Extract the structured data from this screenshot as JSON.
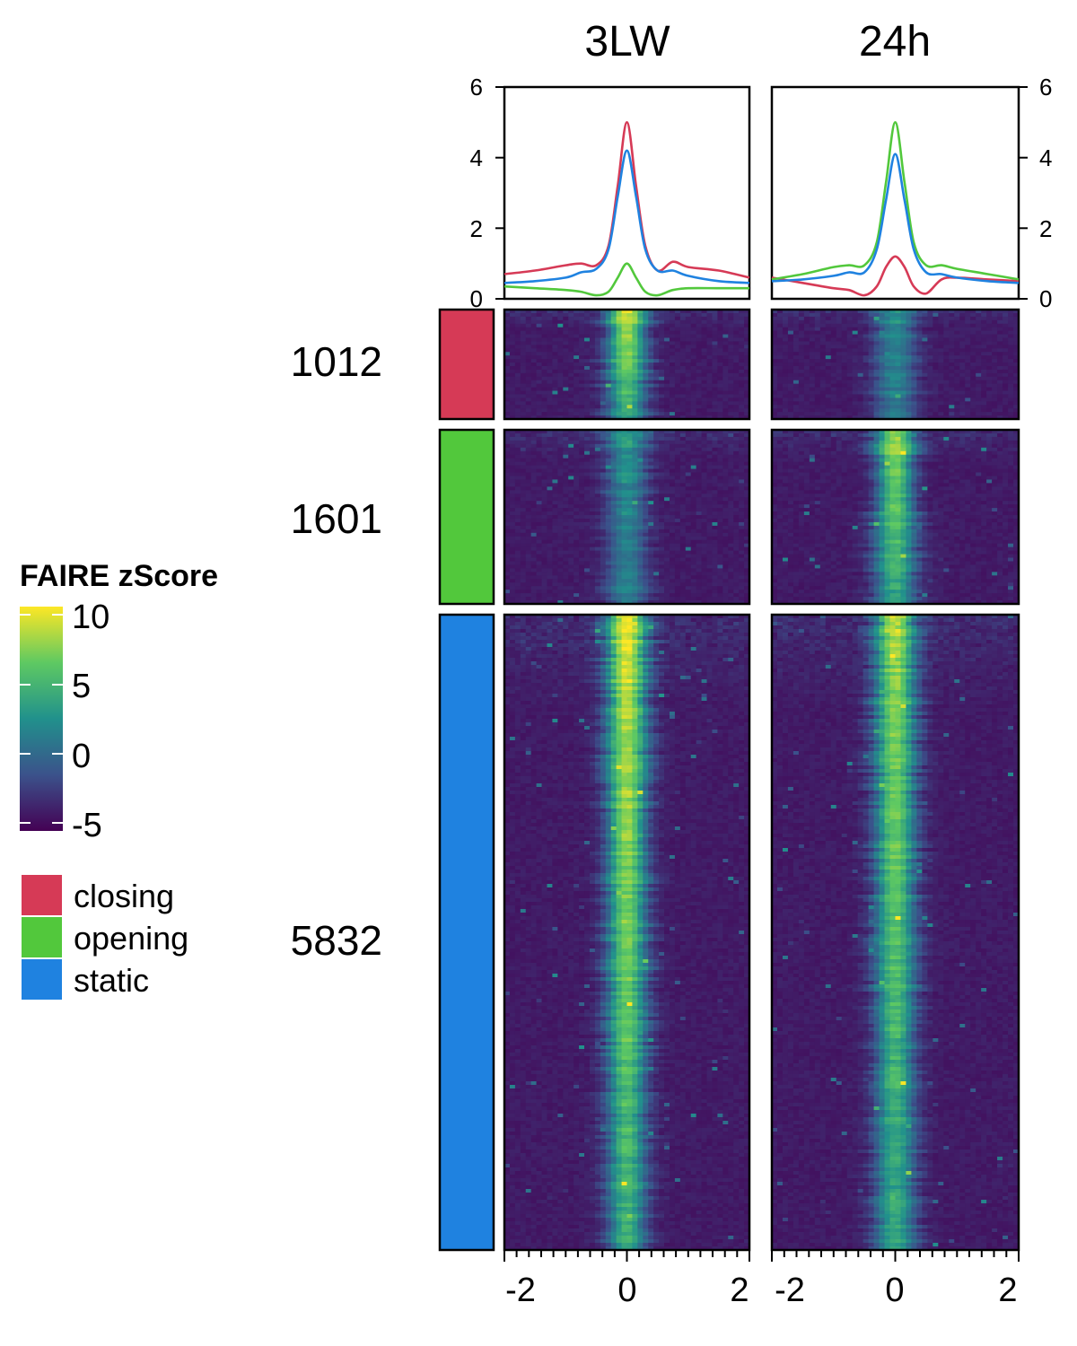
{
  "colors": {
    "closing": "#d63a56",
    "opening": "#52c83c",
    "static": "#1f82e0",
    "frame": "#000000"
  },
  "chart_data": {
    "type": "heatmap",
    "panels": [
      {
        "title": "3LW",
        "profile": {
          "series": [
            {
              "name": "closing",
              "x": [
                -2,
                -1.5,
                -1,
                -0.75,
                -0.5,
                -0.3,
                -0.15,
                0,
                0.15,
                0.3,
                0.5,
                0.75,
                1,
                1.5,
                2
              ],
              "y": [
                0.7,
                0.8,
                0.95,
                1.0,
                0.95,
                1.5,
                3.2,
                5.0,
                3.2,
                1.5,
                0.8,
                1.05,
                0.9,
                0.8,
                0.6
              ]
            },
            {
              "name": "opening",
              "x": [
                -2,
                -1.5,
                -1,
                -0.75,
                -0.5,
                -0.3,
                -0.15,
                0,
                0.15,
                0.3,
                0.5,
                0.75,
                1,
                1.5,
                2
              ],
              "y": [
                0.35,
                0.3,
                0.25,
                0.2,
                0.1,
                0.2,
                0.6,
                1.0,
                0.6,
                0.2,
                0.1,
                0.25,
                0.3,
                0.3,
                0.3
              ]
            },
            {
              "name": "static",
              "x": [
                -2,
                -1.5,
                -1,
                -0.75,
                -0.5,
                -0.3,
                -0.15,
                0,
                0.15,
                0.3,
                0.5,
                0.75,
                1,
                1.5,
                2
              ],
              "y": [
                0.45,
                0.5,
                0.6,
                0.75,
                0.85,
                1.4,
                2.9,
                4.2,
                2.9,
                1.4,
                0.8,
                0.8,
                0.65,
                0.5,
                0.45
              ]
            }
          ],
          "ylim": [
            0,
            6
          ],
          "yticks": [
            "6",
            "4",
            "2",
            "0"
          ],
          "yaxis_side": "left"
        },
        "heatmap": {
          "closing_peak": 8.5,
          "opening_peak": 2.5,
          "static_peak": 9.0
        }
      },
      {
        "title": "24h",
        "profile": {
          "series": [
            {
              "name": "closing",
              "x": [
                -2,
                -1.5,
                -1,
                -0.75,
                -0.5,
                -0.3,
                -0.15,
                0,
                0.15,
                0.3,
                0.5,
                0.75,
                1,
                1.5,
                2
              ],
              "y": [
                0.6,
                0.45,
                0.3,
                0.25,
                0.1,
                0.35,
                0.9,
                1.2,
                0.9,
                0.35,
                0.15,
                0.55,
                0.6,
                0.55,
                0.5
              ]
            },
            {
              "name": "opening",
              "x": [
                -2,
                -1.5,
                -1,
                -0.75,
                -0.5,
                -0.3,
                -0.15,
                0,
                0.15,
                0.3,
                0.5,
                0.75,
                1,
                1.5,
                2
              ],
              "y": [
                0.55,
                0.7,
                0.9,
                0.95,
                0.95,
                1.6,
                3.3,
                5.0,
                3.3,
                1.6,
                0.95,
                0.95,
                0.85,
                0.7,
                0.55
              ]
            },
            {
              "name": "static",
              "x": [
                -2,
                -1.5,
                -1,
                -0.75,
                -0.5,
                -0.3,
                -0.15,
                0,
                0.15,
                0.3,
                0.5,
                0.75,
                1,
                1.5,
                2
              ],
              "y": [
                0.5,
                0.55,
                0.65,
                0.75,
                0.75,
                1.4,
                2.8,
                4.1,
                2.8,
                1.4,
                0.75,
                0.7,
                0.6,
                0.5,
                0.45
              ]
            }
          ],
          "ylim": [
            0,
            6
          ],
          "yticks": [
            "6",
            "4",
            "2",
            "0"
          ],
          "yaxis_side": "right"
        },
        "heatmap": {
          "closing_peak": 2.0,
          "opening_peak": 7.5,
          "static_peak": 7.5
        }
      }
    ],
    "xaxis": {
      "range": [
        -2,
        2
      ],
      "ticks": [
        "-2",
        "0",
        "2"
      ]
    },
    "groups": [
      {
        "name": "closing",
        "count": "1012"
      },
      {
        "name": "opening",
        "count": "1601"
      },
      {
        "name": "static",
        "count": "5832"
      }
    ],
    "colorbar": {
      "title": "FAIRE zScore",
      "range": [
        -5,
        10
      ],
      "ticks": [
        "10",
        "5",
        "0",
        "-5"
      ],
      "palette": [
        "#440154",
        "#3b528b",
        "#21918c",
        "#5ec962",
        "#fde725"
      ]
    },
    "legend": {
      "placement": "left",
      "items": [
        "closing",
        "opening",
        "static"
      ]
    }
  }
}
